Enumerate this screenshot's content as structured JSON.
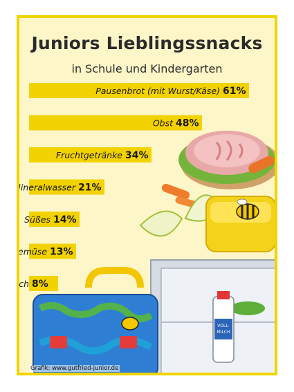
{
  "title": "Juniors Lieblingssnacks",
  "subtitle": "in Schule und Kindergarten",
  "credit": "Grafik: www.gutfried-junior.de",
  "colors": {
    "frame_border": "#f0d400",
    "frame_background": "#fdf6c8",
    "bar": "#f2d200",
    "label_text": "#1a1a1a"
  },
  "chart_data": {
    "type": "bar",
    "orientation": "horizontal",
    "unit": "%",
    "categories": [
      "Pausenbrot (mit Wurst/Käse)",
      "Obst",
      "Fruchtgetränke",
      "Mineralwasser",
      "Süßes",
      "Gemüse",
      "Milch"
    ],
    "values": [
      61,
      48,
      34,
      21,
      14,
      13,
      8
    ],
    "value_labels": [
      "61%",
      "48%",
      "34%",
      "21%",
      "14%",
      "13%",
      "8%"
    ],
    "xlim": [
      0,
      61
    ]
  },
  "illustrations": {
    "bread": "sandwich-icon",
    "apple": "apple-slices-icon",
    "carrot": "carrot-icon",
    "lunchbox": "lunchbox-icon",
    "bee": "bee-icon",
    "schoolbag": "schoolbag-icon",
    "fridge": "fridge-icon",
    "milk": "milk-bottle-icon",
    "milk_label": "VOLL-\nMILCH"
  }
}
